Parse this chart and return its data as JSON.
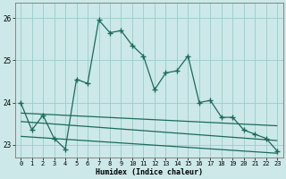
{
  "xlabel": "Humidex (Indice chaleur)",
  "bg_color": "#cce8e8",
  "grid_color": "#99cccc",
  "line_color": "#1a6b5a",
  "xlim": [
    -0.5,
    23.5
  ],
  "ylim": [
    22.7,
    26.35
  ],
  "yticks": [
    23,
    24,
    25,
    26
  ],
  "xticks": [
    0,
    1,
    2,
    3,
    4,
    5,
    6,
    7,
    8,
    9,
    10,
    11,
    12,
    13,
    14,
    15,
    16,
    17,
    18,
    19,
    20,
    21,
    22,
    23
  ],
  "main_x": [
    0,
    1,
    2,
    3,
    4,
    5,
    6,
    7,
    8,
    9,
    10,
    11,
    12,
    13,
    14,
    15,
    16,
    17,
    18,
    19,
    20,
    21,
    22,
    23
  ],
  "main_y": [
    24.0,
    23.35,
    23.7,
    23.15,
    22.9,
    24.55,
    24.45,
    25.95,
    25.65,
    25.7,
    25.35,
    25.1,
    24.3,
    24.7,
    24.75,
    25.1,
    24.0,
    24.05,
    23.65,
    23.65,
    23.35,
    23.25,
    23.15,
    22.85
  ],
  "line2_x": [
    0,
    23
  ],
  "line2_y": [
    23.75,
    23.45
  ],
  "line3_x": [
    0,
    23
  ],
  "line3_y": [
    23.55,
    23.1
  ],
  "line4_x": [
    0,
    23
  ],
  "line4_y": [
    23.2,
    22.8
  ]
}
